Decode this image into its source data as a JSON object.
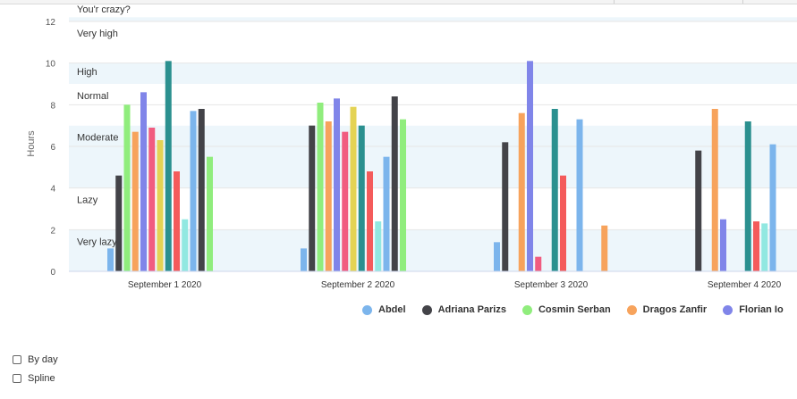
{
  "chart_data": {
    "type": "bar",
    "ylabel": "Hours",
    "ylim": [
      0,
      12
    ],
    "yticks": [
      0,
      2,
      4,
      6,
      8,
      10,
      12
    ],
    "categories": [
      "September 1 2020",
      "September 2 2020",
      "September 3 2020",
      "September 4 2020"
    ],
    "bands": [
      {
        "label": "Very lazy",
        "from": 0,
        "to": 2,
        "color": "#edf6fb"
      },
      {
        "label": "Lazy",
        "from": 2,
        "to": 4,
        "color": "#ffffff"
      },
      {
        "label": "Moderate",
        "from": 4,
        "to": 7,
        "color": "#edf6fb"
      },
      {
        "label": "Normal",
        "from": 7,
        "to": 9,
        "color": "#ffffff"
      },
      {
        "label": "High",
        "from": 9,
        "to": 10,
        "color": "#edf6fb"
      },
      {
        "label": "Very high",
        "from": 10,
        "to": 12,
        "color": "#ffffff"
      },
      {
        "label": "You'r crazy?",
        "from": 12,
        "to": 12.2,
        "color": "#edf6fb"
      }
    ],
    "series": [
      {
        "name": "Abdel",
        "color": "#7cb5ec",
        "values": [
          1.1,
          1.1,
          1.4,
          0
        ]
      },
      {
        "name": "Adriana Parizs",
        "color": "#434348",
        "values": [
          4.6,
          7.0,
          6.2,
          5.8
        ]
      },
      {
        "name": "Cosmin Serban",
        "color": "#90ed7d",
        "values": [
          8.0,
          8.1,
          0,
          0
        ]
      },
      {
        "name": "Dragos Zanfir",
        "color": "#f7a35c",
        "values": [
          6.7,
          7.2,
          7.6,
          7.8
        ]
      },
      {
        "name": "Florian Io",
        "color": "#8085e9",
        "values": [
          8.6,
          8.3,
          10.1,
          2.5
        ]
      },
      {
        "name": "",
        "color": "#f15c80",
        "values": [
          6.9,
          6.7,
          0.7,
          0
        ]
      },
      {
        "name": "",
        "color": "#e4d354",
        "values": [
          6.3,
          7.9,
          0,
          0
        ]
      },
      {
        "name": "",
        "color": "#2b908f",
        "values": [
          10.1,
          7.0,
          7.8,
          7.2
        ]
      },
      {
        "name": "",
        "color": "#f45b5b",
        "values": [
          4.8,
          4.8,
          4.6,
          2.4
        ]
      },
      {
        "name": "",
        "color": "#91e8e1",
        "values": [
          2.5,
          2.4,
          0,
          2.3
        ]
      },
      {
        "name": "",
        "color": "#7cb5ec",
        "values": [
          7.7,
          5.5,
          7.3,
          6.1
        ]
      },
      {
        "name": "",
        "color": "#434348",
        "values": [
          7.8,
          8.4,
          0,
          0
        ]
      },
      {
        "name": "",
        "color": "#90ed7d",
        "values": [
          5.5,
          7.3,
          0,
          0
        ]
      },
      {
        "name": "",
        "color": "#f7a35c",
        "values": [
          0,
          0,
          2.2,
          0.3
        ]
      }
    ]
  },
  "controls": {
    "by_day": "By day",
    "spline": "Spline"
  }
}
